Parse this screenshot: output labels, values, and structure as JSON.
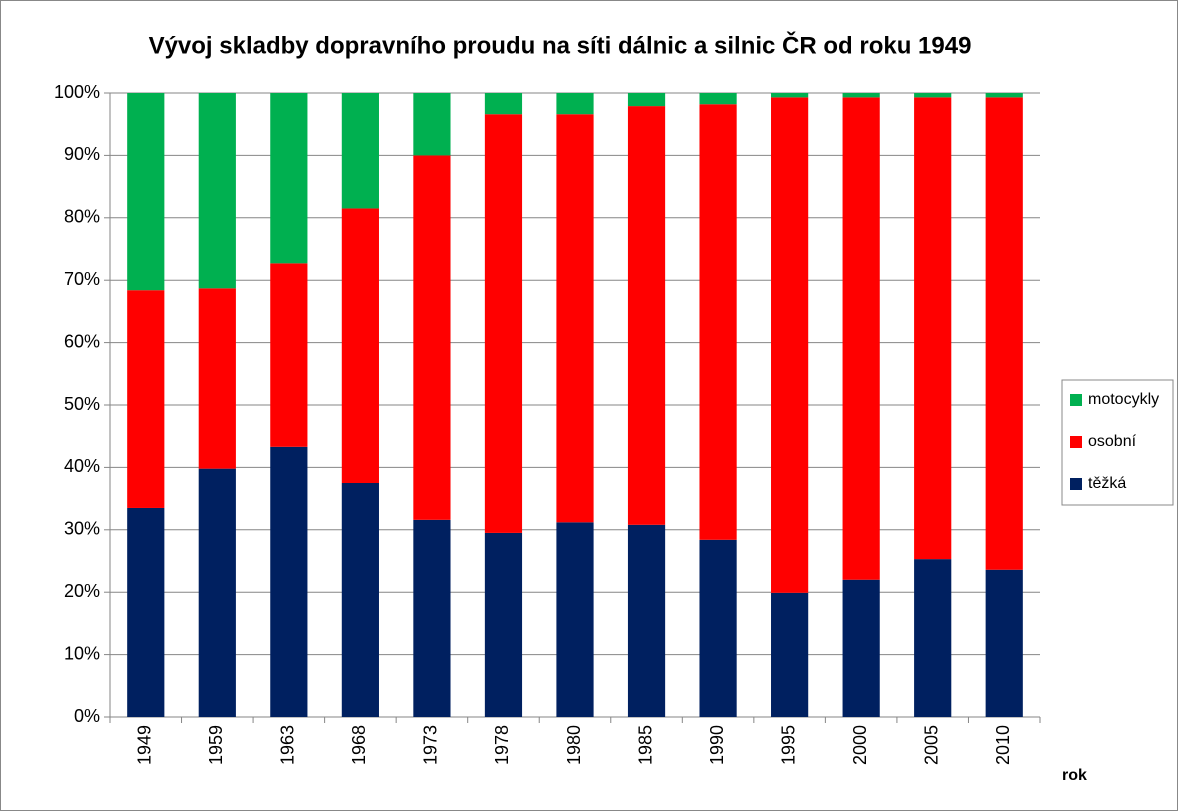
{
  "chart_data": {
    "type": "stacked_bar",
    "title": "Vývoj skladby dopravního proudu na síti dálnic a silnic ČR od roku 1949",
    "x_label": "rok",
    "categories": [
      "1949",
      "1959",
      "1963",
      "1968",
      "1973",
      "1978",
      "1980",
      "1985",
      "1990",
      "1995",
      "2000",
      "2005",
      "2010"
    ],
    "series": [
      {
        "name": "těžká",
        "color": "#002060",
        "values": [
          33.5,
          39.8,
          43.3,
          37.5,
          31.6,
          29.5,
          31.2,
          30.8,
          28.4,
          19.9,
          22.0,
          25.3,
          23.6
        ]
      },
      {
        "name": "osobní",
        "color": "#ff0000",
        "values": [
          34.9,
          28.9,
          29.4,
          44.0,
          58.4,
          67.1,
          65.4,
          67.1,
          69.8,
          79.4,
          77.3,
          74.0,
          75.7
        ]
      },
      {
        "name": "motocykly",
        "color": "#00b050",
        "values": [
          31.6,
          31.3,
          27.3,
          18.5,
          10.0,
          3.4,
          3.4,
          2.1,
          1.8,
          0.7,
          0.7,
          0.7,
          0.7
        ]
      }
    ],
    "ylim": [
      0,
      100
    ],
    "yticks": [
      {
        "value": 0,
        "label": "0%"
      },
      {
        "value": 10,
        "label": "10%"
      },
      {
        "value": 20,
        "label": "20%"
      },
      {
        "value": 30,
        "label": "30%"
      },
      {
        "value": 40,
        "label": "40%"
      },
      {
        "value": 50,
        "label": "50%"
      },
      {
        "value": 60,
        "label": "60%"
      },
      {
        "value": 70,
        "label": "70%"
      },
      {
        "value": 80,
        "label": "80%"
      },
      {
        "value": 90,
        "label": "90%"
      },
      {
        "value": 100,
        "label": "100%"
      }
    ],
    "grid": true,
    "legend": "right"
  }
}
